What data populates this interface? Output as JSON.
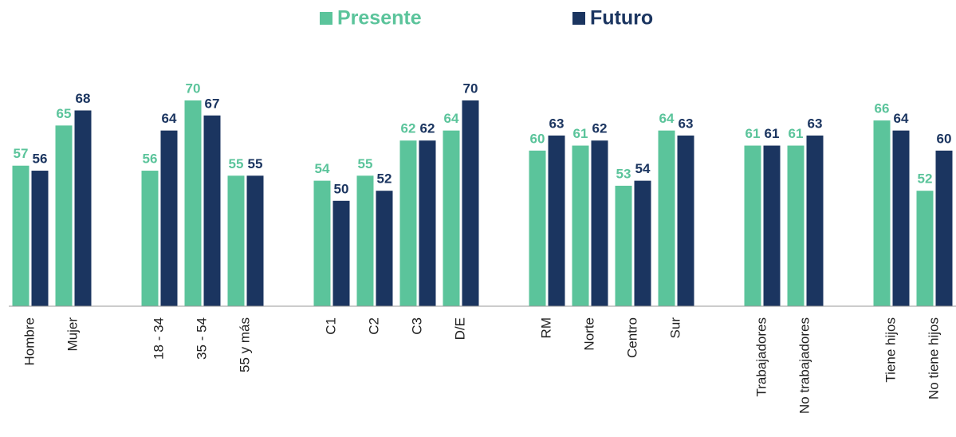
{
  "chart_data": {
    "type": "bar",
    "categories": [
      "Hombre",
      "Mujer",
      null,
      "18 - 34",
      "35 - 54",
      "55 y más",
      null,
      "C1",
      "C2",
      "C3",
      "D/E",
      null,
      "RM",
      "Norte",
      "Centro",
      "Sur",
      null,
      "Trabajadores",
      "No trabajadores",
      null,
      "Tiene hijos",
      "No tiene hijos"
    ],
    "series": [
      {
        "name": "Presente",
        "color": "#5bc49b",
        "values": [
          57,
          65,
          null,
          56,
          70,
          55,
          null,
          54,
          55,
          62,
          64,
          null,
          60,
          61,
          53,
          64,
          null,
          61,
          61,
          null,
          66,
          52
        ]
      },
      {
        "name": "Futuro",
        "color": "#1b3560",
        "values": [
          56,
          68,
          null,
          64,
          67,
          55,
          null,
          50,
          52,
          62,
          70,
          null,
          63,
          62,
          54,
          63,
          null,
          61,
          63,
          null,
          64,
          60
        ]
      }
    ],
    "ylim": [
      29,
      90
    ]
  }
}
